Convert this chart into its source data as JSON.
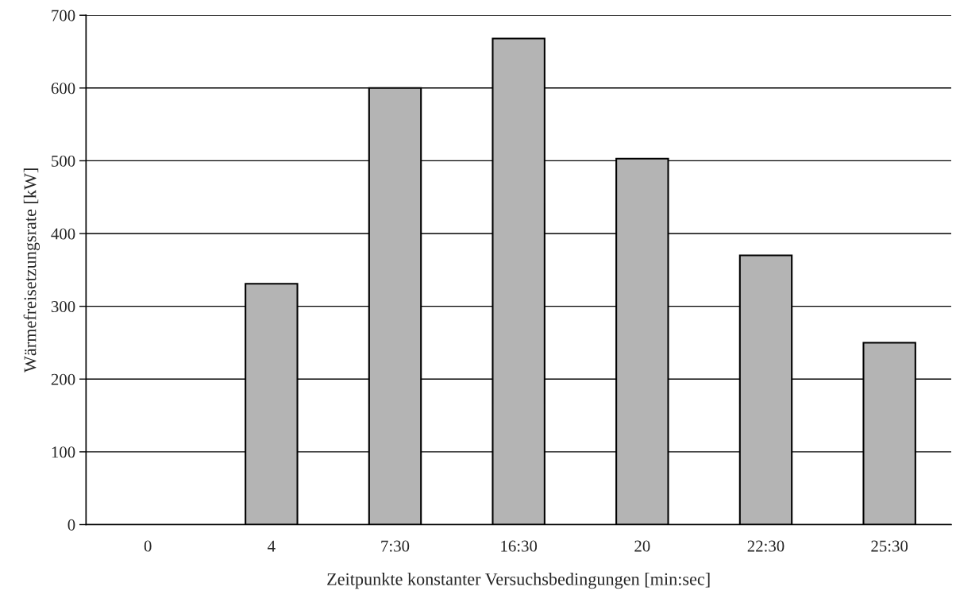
{
  "chart_data": {
    "type": "bar",
    "xlabel": "Zeitpunkte konstanter Versuchsbedingungen [min:sec]",
    "ylabel": "Wärmefreisetzungsrate [kW]",
    "categories": [
      "0",
      "4",
      "7:30",
      "16:30",
      "20",
      "22:30",
      "25:30"
    ],
    "values": [
      null,
      331,
      600,
      668,
      503,
      370,
      250
    ],
    "color": "#b4b4b4",
    "ylim": [
      0,
      700
    ],
    "yticks": [
      0,
      100,
      200,
      300,
      400,
      500,
      600,
      700
    ],
    "grid": "y",
    "legend": false
  }
}
